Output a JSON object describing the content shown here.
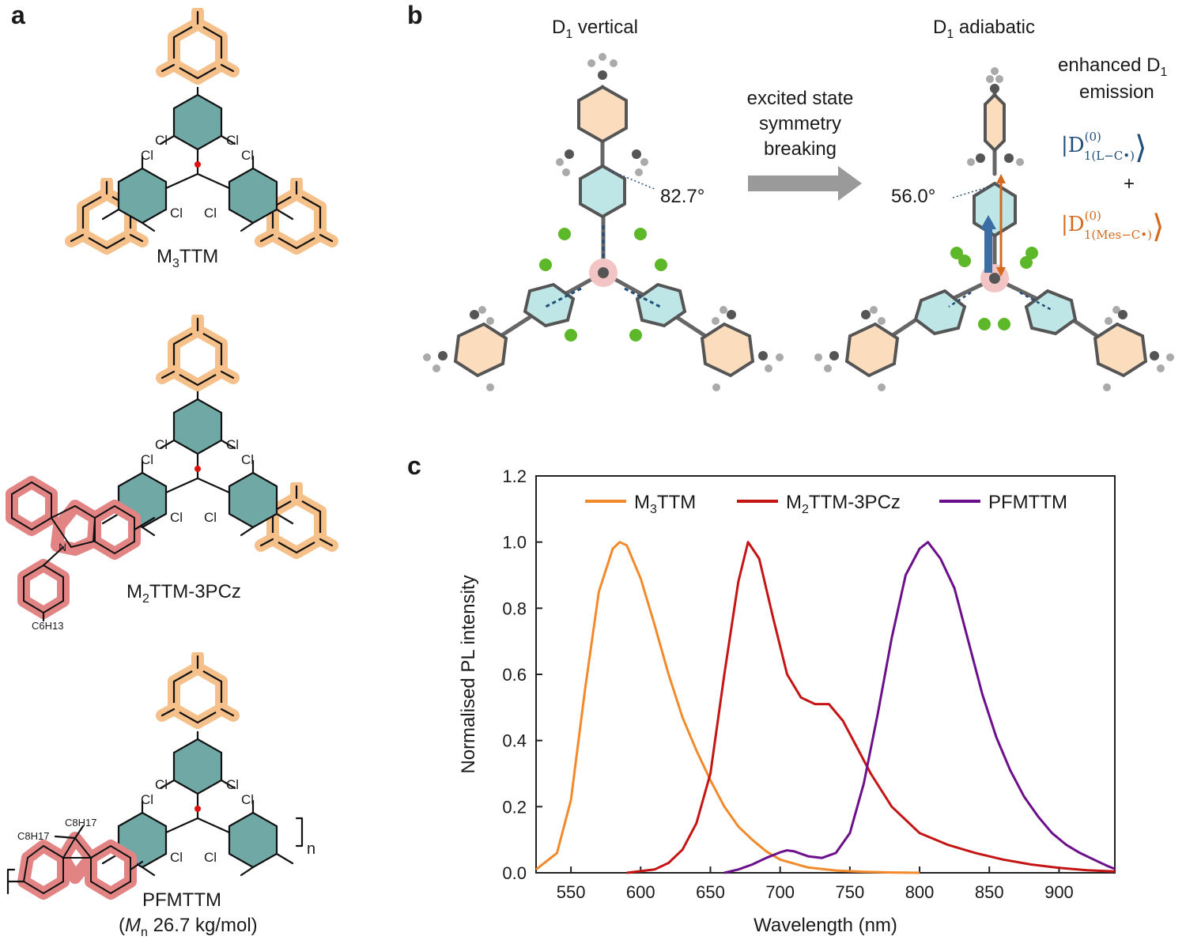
{
  "panels": {
    "a": {
      "label": "a",
      "molecules": [
        {
          "name": "M",
          "sub": "3",
          "rest": "TTM"
        },
        {
          "name": "M",
          "sub": "2",
          "rest": "TTM-3PCz",
          "side_chain": "C6H13"
        },
        {
          "name": "PFMTTM",
          "side_chains": [
            "C8H17",
            "C8H17"
          ],
          "repeat": "n",
          "mn_label": "M",
          "mn_sub": "n",
          "mn_value": "26.7 kg/mol"
        }
      ],
      "atom_label": "Cl"
    },
    "b": {
      "label": "b",
      "left_title": "D",
      "left_title_sub": "1",
      "left_title_rest": " vertical",
      "right_title": "D",
      "right_title_sub": "1",
      "right_title_rest": " adiabatic",
      "arrow_text": [
        "excited state",
        "symmetry",
        "breaking"
      ],
      "angle_left": "82.7°",
      "angle_right": "56.0°",
      "emission_title": [
        "enhanced D",
        "emission"
      ],
      "emission_sub": "1",
      "state1": "|D",
      "state1_sup": "(0)",
      "state1_sub": "1(L−C•)",
      "plus": "+",
      "state2": "|D",
      "state2_sup": "(0)",
      "state2_sub": "1(Mes−C•)",
      "colors": {
        "state1": "#1f4e79",
        "state2": "#d46a1e",
        "arrow": "#9a9a9a"
      }
    },
    "c": {
      "label": "c"
    }
  },
  "chart_data": {
    "type": "line",
    "xlabel": "Wavelength (nm)",
    "ylabel": "Normalised PL intensity",
    "xlim": [
      525,
      940
    ],
    "ylim": [
      0.0,
      1.2
    ],
    "xticks": [
      550,
      600,
      650,
      700,
      750,
      800,
      850,
      900
    ],
    "yticks": [
      0.0,
      0.2,
      0.4,
      0.6,
      0.8,
      1.0,
      1.2
    ],
    "legend_position": "top",
    "series": [
      {
        "name": "M3TTM",
        "label_main": "M",
        "label_sub": "3",
        "label_rest": "TTM",
        "color": "#f28a2b",
        "x": [
          525,
          540,
          550,
          560,
          570,
          580,
          585,
          590,
          600,
          610,
          620,
          630,
          640,
          650,
          660,
          670,
          680,
          690,
          700,
          720,
          740,
          760,
          780,
          800
        ],
        "y": [
          0.01,
          0.06,
          0.22,
          0.55,
          0.85,
          0.98,
          1.0,
          0.99,
          0.89,
          0.75,
          0.6,
          0.47,
          0.37,
          0.28,
          0.2,
          0.14,
          0.1,
          0.065,
          0.04,
          0.016,
          0.007,
          0.003,
          0.001,
          0.0
        ]
      },
      {
        "name": "M2TTM-3PCz",
        "label_main": "M",
        "label_sub": "2",
        "label_rest": "TTM-3PCz",
        "color": "#c41414",
        "x": [
          590,
          610,
          620,
          630,
          640,
          650,
          660,
          670,
          677,
          685,
          695,
          705,
          715,
          725,
          735,
          745,
          755,
          765,
          780,
          800,
          820,
          840,
          860,
          880,
          900,
          920,
          940
        ],
        "y": [
          0.0,
          0.01,
          0.03,
          0.07,
          0.15,
          0.3,
          0.6,
          0.88,
          1.0,
          0.95,
          0.77,
          0.6,
          0.53,
          0.51,
          0.51,
          0.46,
          0.38,
          0.3,
          0.2,
          0.12,
          0.085,
          0.06,
          0.04,
          0.025,
          0.015,
          0.008,
          0.004
        ]
      },
      {
        "name": "PFMTTM",
        "label_main": "PFMTTM",
        "label_sub": "",
        "label_rest": "",
        "color": "#6b0f8a",
        "x": [
          660,
          670,
          680,
          690,
          700,
          705,
          710,
          720,
          730,
          740,
          750,
          760,
          770,
          780,
          790,
          800,
          806,
          815,
          825,
          835,
          845,
          855,
          865,
          875,
          885,
          895,
          905,
          915,
          925,
          935,
          940
        ],
        "y": [
          0.0,
          0.01,
          0.025,
          0.045,
          0.062,
          0.068,
          0.065,
          0.05,
          0.045,
          0.06,
          0.12,
          0.27,
          0.48,
          0.71,
          0.9,
          0.98,
          1.0,
          0.95,
          0.86,
          0.7,
          0.54,
          0.41,
          0.31,
          0.23,
          0.17,
          0.12,
          0.085,
          0.06,
          0.04,
          0.02,
          0.012
        ]
      }
    ]
  }
}
